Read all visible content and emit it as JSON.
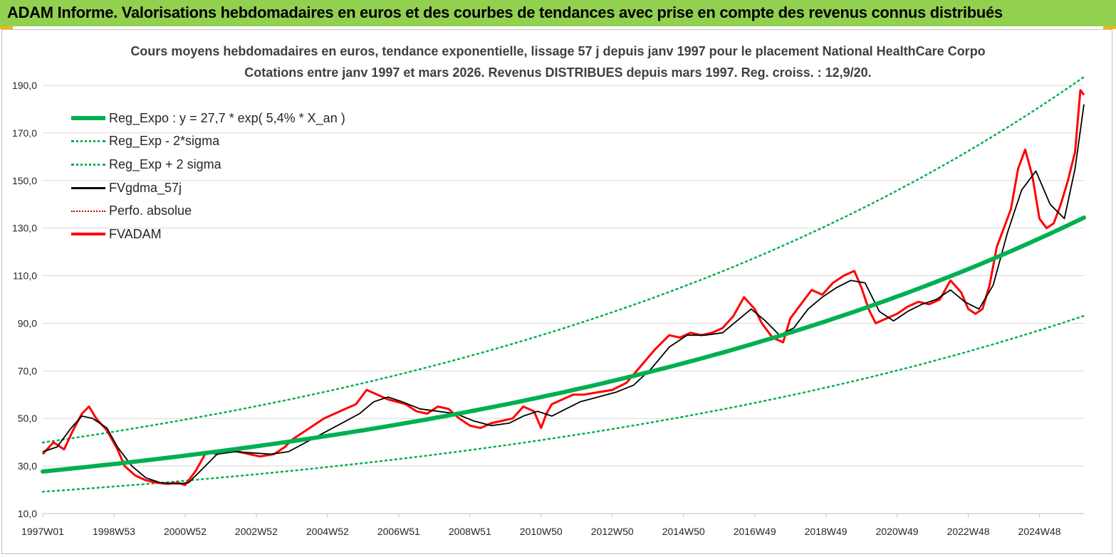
{
  "banner": {
    "title": "ADAM Informe. Valorisations hebdomadaires en euros et des courbes de tendances avec prise en compte des revenus connus distribués"
  },
  "colors": {
    "banner_bg": "#92d050",
    "accent": "#f2b705",
    "trend": "#00b050",
    "fvadam": "#ff0000",
    "fvgdma": "#000000",
    "perfo": "#c00000"
  },
  "chart_data": {
    "type": "line",
    "title": "Cours moyens hebdomadaires en euros, tendance exponentielle, lissage 57 j depuis janv 1997  pour le placement National HealthCare Corpo",
    "subtitle": "Cotations entre janv 1997 et mars 2026. Revenus DISTRIBUES depuis mars 1997. Reg. croiss. : 12,9/20.",
    "xlabel": "",
    "ylabel": "",
    "ylim": [
      10,
      190
    ],
    "y_ticks": [
      "190,0",
      "170,0",
      "150,0",
      "130,0",
      "110,0",
      "90,0",
      "70,0",
      "50,0",
      "30,0",
      "10,0"
    ],
    "x_ticks": [
      "1997W01",
      "1998W53",
      "2000W52",
      "2002W52",
      "2004W52",
      "2006W51",
      "2008W51",
      "2010W50",
      "2012W50",
      "2014W50",
      "2016W49",
      "2018W49",
      "2020W49",
      "2022W48",
      "2024W48"
    ],
    "x_tick_years": [
      1997.0,
      1999.0,
      2001.0,
      2003.0,
      2005.0,
      2007.0,
      2009.0,
      2011.0,
      2013.0,
      2015.0,
      2017.0,
      2019.0,
      2021.0,
      2023.0,
      2025.0
    ],
    "x_range": [
      1997.0,
      2026.25
    ],
    "grid": "horizontal",
    "legend_position": "top-left",
    "series": [
      {
        "name": "Reg_Expo : y = 27,7 * exp( 5,4% *  X_an )",
        "style": "solid-thick",
        "color": "#00b050",
        "a": 27.7,
        "rate": 0.054
      },
      {
        "name": "Reg_Exp - 2*sigma",
        "style": "dotted",
        "color": "#00b050",
        "factor": 0.693
      },
      {
        "name": "Reg_Exp + 2 sigma",
        "style": "dotted",
        "color": "#00b050",
        "factor": 1.44
      },
      {
        "name": "FVgdma_57j",
        "style": "solid",
        "color": "#000000"
      },
      {
        "name": "Perfo. absolue",
        "style": "dotted",
        "color": "#c00000"
      },
      {
        "name": "FVADAM",
        "style": "solid-thick",
        "color": "#ff0000",
        "x": [
          1997.0,
          1997.3,
          1997.6,
          1997.85,
          1998.1,
          1998.3,
          1998.5,
          1998.8,
          1999.1,
          1999.3,
          1999.6,
          1999.9,
          2000.2,
          2000.5,
          2000.8,
          2001.0,
          2001.3,
          2001.6,
          2001.9,
          2002.2,
          2002.5,
          2002.8,
          2003.1,
          2003.5,
          2003.8,
          2004.0,
          2004.3,
          2004.6,
          2004.9,
          2005.2,
          2005.5,
          2005.8,
          2006.1,
          2006.4,
          2006.7,
          2006.95,
          2007.2,
          2007.5,
          2007.8,
          2008.1,
          2008.4,
          2008.7,
          2009.0,
          2009.3,
          2009.6,
          2009.9,
          2010.2,
          2010.5,
          2010.8,
          2011.0,
          2011.15,
          2011.3,
          2011.6,
          2011.9,
          2012.2,
          2012.6,
          2013.0,
          2013.4,
          2013.8,
          2014.2,
          2014.6,
          2014.9,
          2015.2,
          2015.5,
          2015.8,
          2016.1,
          2016.4,
          2016.7,
          2017.0,
          2017.2,
          2017.5,
          2017.8,
          2018.0,
          2018.3,
          2018.6,
          2018.9,
          2019.2,
          2019.5,
          2019.8,
          2020.0,
          2020.2,
          2020.4,
          2020.7,
          2021.0,
          2021.3,
          2021.6,
          2021.9,
          2022.2,
          2022.5,
          2022.8,
          2023.0,
          2023.2,
          2023.4,
          2023.6,
          2023.8,
          2024.0,
          2024.2,
          2024.4,
          2024.6,
          2024.8,
          2025.0,
          2025.2,
          2025.4,
          2025.6,
          2025.8,
          2026.0,
          2026.15,
          2026.25
        ],
        "y": [
          35,
          40,
          37,
          45,
          52,
          55,
          50,
          45,
          37,
          30,
          26,
          24,
          23,
          22.5,
          23,
          22,
          28,
          36,
          35,
          37,
          36,
          35,
          34,
          35,
          38,
          41,
          44,
          47,
          50,
          52,
          54,
          56,
          62,
          60,
          58,
          57,
          56,
          53,
          52,
          55,
          54,
          50,
          47,
          46,
          48,
          49,
          50,
          55,
          53,
          46,
          52,
          56,
          58,
          60,
          60,
          61,
          62,
          65,
          72,
          79,
          85,
          84,
          86,
          85,
          86,
          88,
          93,
          101,
          96,
          90,
          84,
          82,
          92,
          98,
          104,
          102,
          107,
          110,
          112,
          105,
          96,
          90,
          92,
          94,
          97,
          99,
          98,
          100,
          108,
          103,
          96,
          94,
          96,
          106,
          122,
          130,
          138,
          155,
          163,
          152,
          134,
          130,
          132,
          140,
          150,
          162,
          188,
          186
        ]
      },
      {
        "name": "FVgdma_57j",
        "role": "smoothed",
        "x": [
          1997.0,
          1997.4,
          1997.8,
          1998.1,
          1998.4,
          1998.8,
          1999.1,
          1999.5,
          1999.9,
          2000.3,
          2000.8,
          2001.1,
          2001.5,
          2001.9,
          2002.4,
          2002.9,
          2003.4,
          2003.9,
          2004.4,
          2004.9,
          2005.4,
          2005.9,
          2006.3,
          2006.7,
          2007.1,
          2007.6,
          2008.1,
          2008.6,
          2009.1,
          2009.6,
          2010.1,
          2010.5,
          2010.9,
          2011.3,
          2011.7,
          2012.1,
          2012.6,
          2013.1,
          2013.6,
          2014.1,
          2014.6,
          2015.1,
          2015.6,
          2016.1,
          2016.5,
          2016.9,
          2017.3,
          2017.7,
          2018.1,
          2018.5,
          2018.9,
          2019.3,
          2019.7,
          2020.1,
          2020.5,
          2020.9,
          2021.3,
          2021.7,
          2022.1,
          2022.5,
          2022.9,
          2023.3,
          2023.7,
          2024.1,
          2024.5,
          2024.9,
          2025.3,
          2025.7,
          2026.0,
          2026.25
        ],
        "y": [
          36,
          38,
          46,
          51,
          50,
          46,
          38,
          30,
          25,
          23,
          22.5,
          23,
          29,
          35,
          36,
          35.5,
          35,
          36,
          40,
          44,
          48,
          52,
          57,
          59,
          57,
          54,
          53,
          52,
          49,
          47,
          48,
          51,
          53,
          51,
          54,
          57,
          59,
          61,
          64,
          71,
          80,
          85,
          85,
          86,
          91,
          96,
          91,
          85,
          88,
          96,
          101,
          105,
          108,
          107,
          95,
          91,
          95,
          98,
          100,
          104,
          99,
          96,
          106,
          128,
          146,
          154,
          140,
          134,
          155,
          182
        ]
      }
    ]
  }
}
